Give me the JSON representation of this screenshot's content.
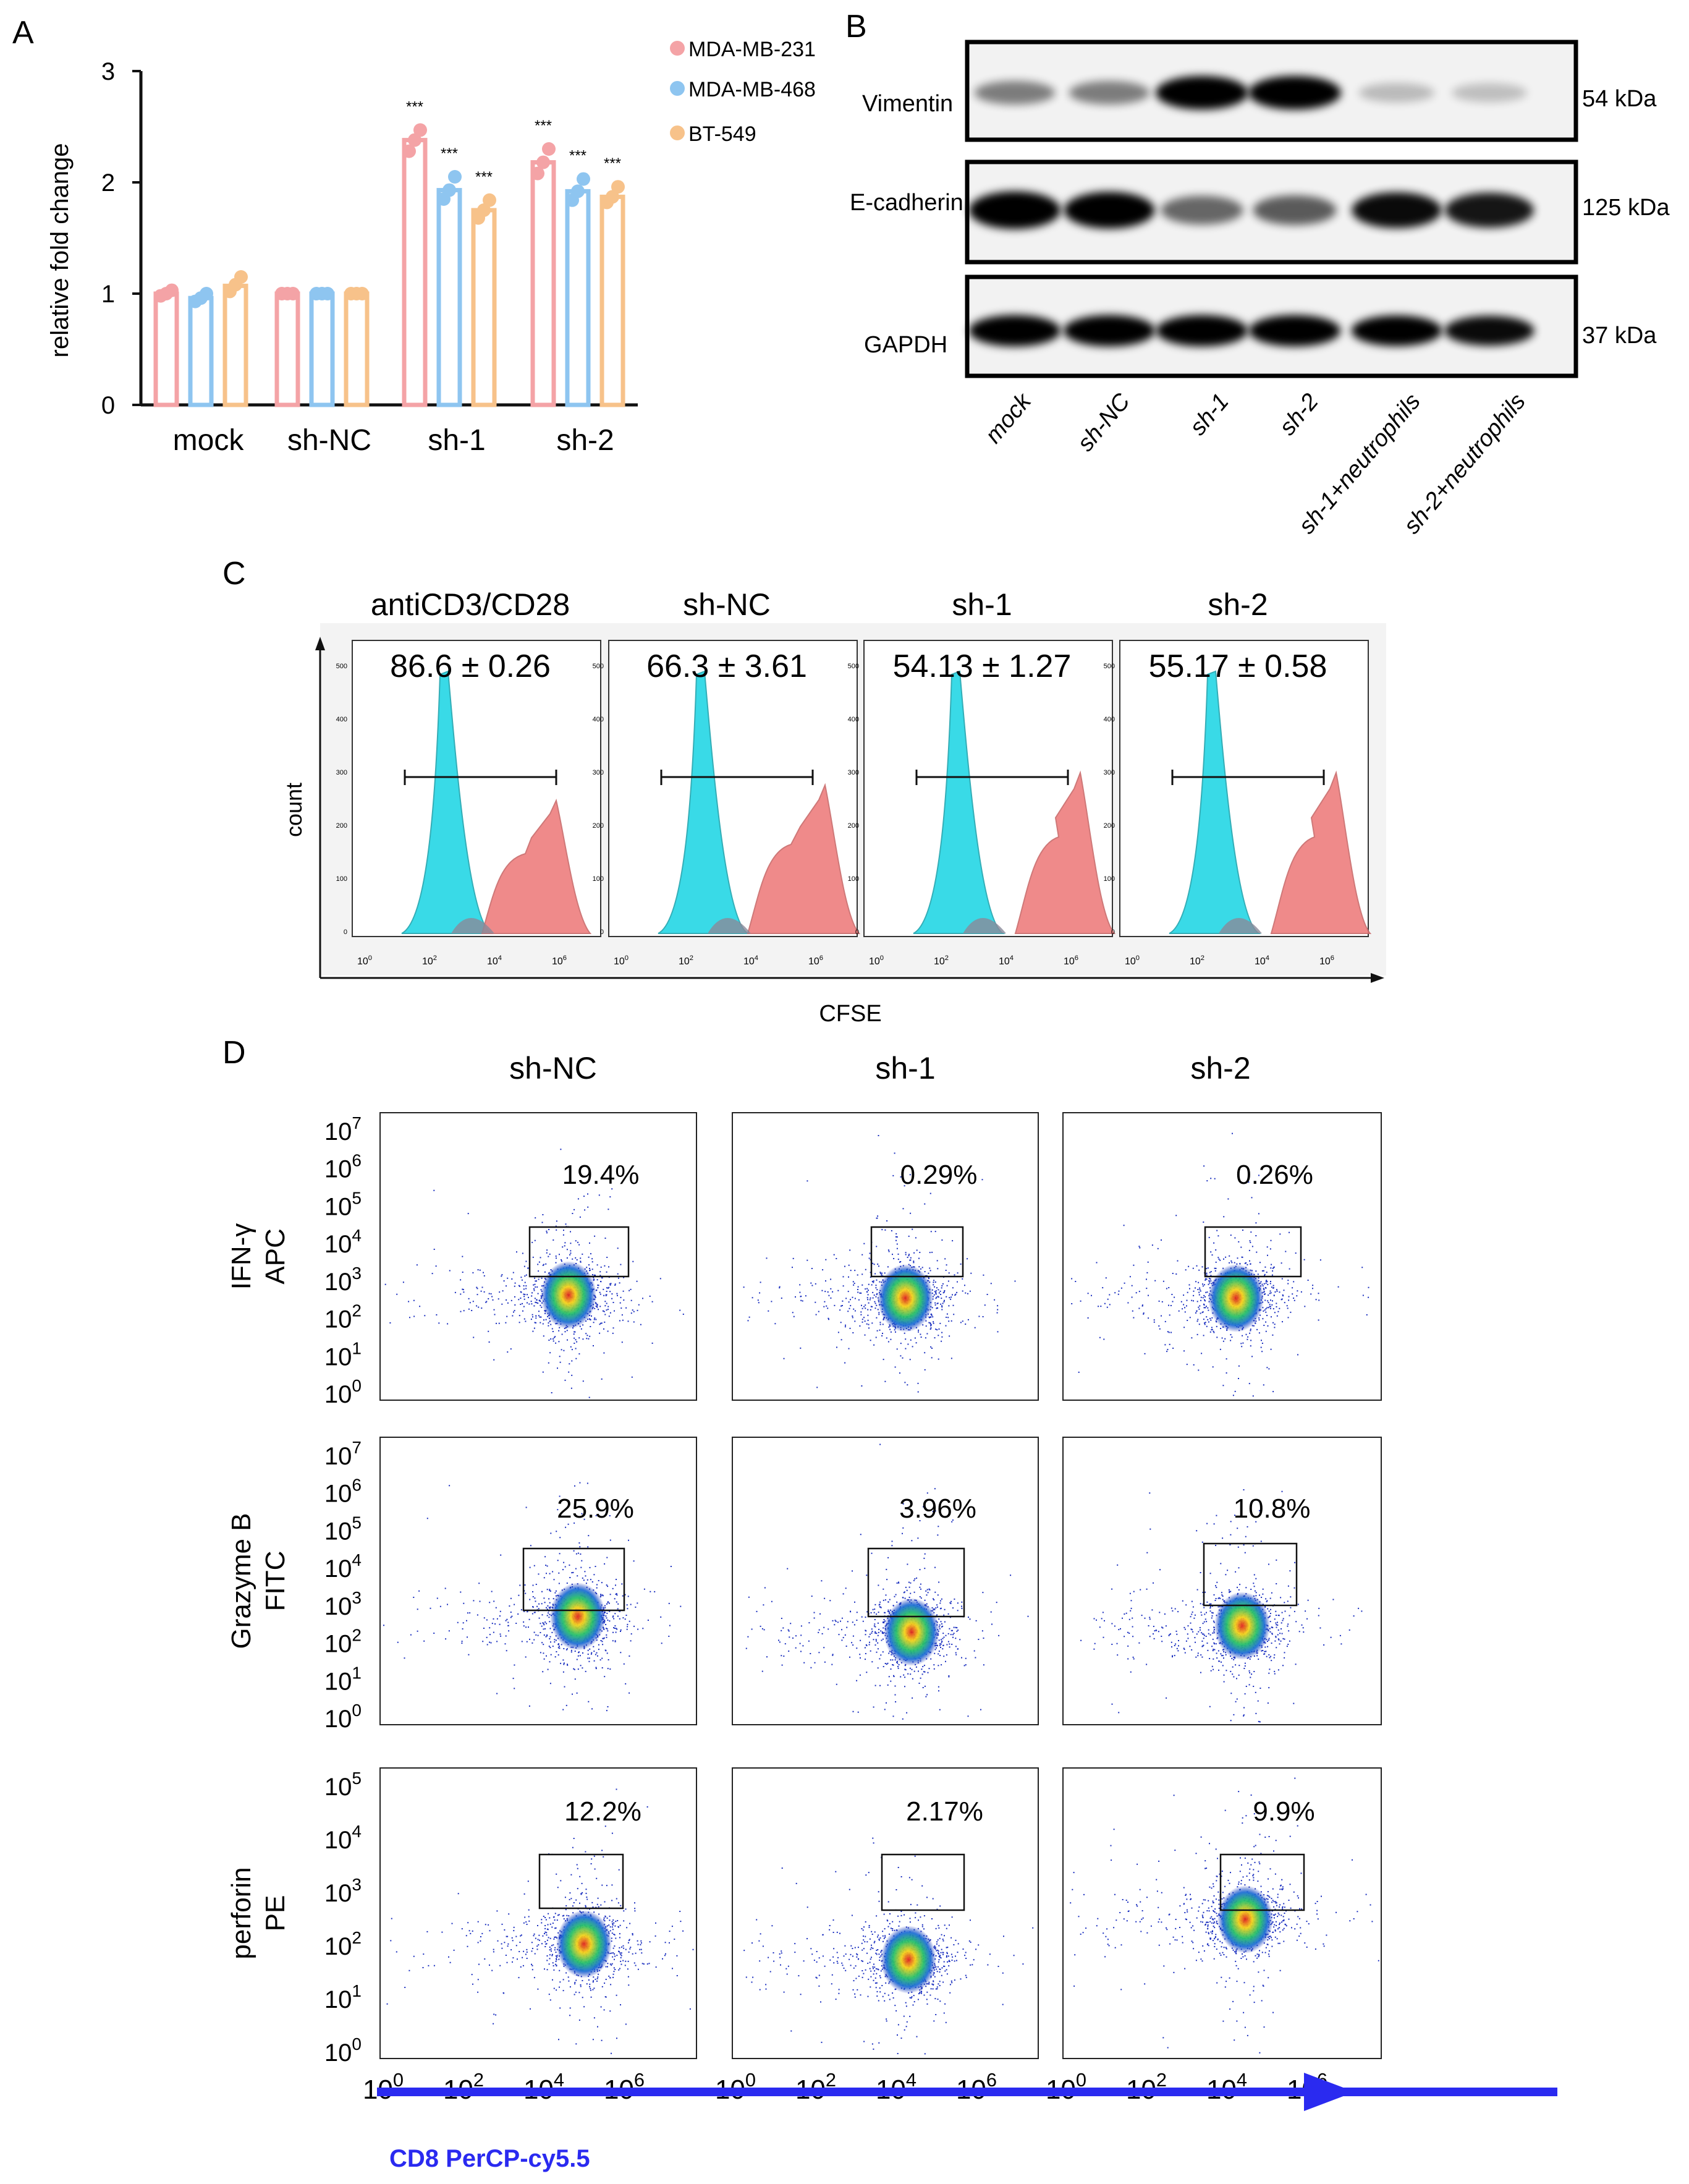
{
  "colors": {
    "mda231": "#F4A3A6",
    "mda468": "#8EC5F0",
    "bt549": "#F7C28A",
    "cyan_hist": "#2FD9E6",
    "red_hist": "#EE7E7E",
    "arrow": "#2A2AF0",
    "arrow_label": "#2A2AF0"
  },
  "panel_letters": [
    "A",
    "B",
    "C",
    "D"
  ],
  "panel_a": {
    "ylabel": "relative fold change",
    "yticks": [
      "0",
      "1",
      "2",
      "3"
    ],
    "legend": [
      "MDA-MB-231",
      "MDA-MB-468",
      "BT-549"
    ],
    "sig_label": "***"
  },
  "chart_data": {
    "type": "bar",
    "title": "",
    "xlabel": "",
    "ylabel": "relative fold change",
    "ylim": [
      0,
      3
    ],
    "categories": [
      "mock",
      "sh-NC",
      "sh-1",
      "sh-2"
    ],
    "series": [
      {
        "name": "MDA-MB-231",
        "values": [
          1.0,
          1.0,
          2.38,
          2.18
        ],
        "points": [
          [
            0.98,
            1.0,
            1.03
          ],
          [
            1.0,
            1.0,
            1.0
          ],
          [
            2.28,
            2.38,
            2.47
          ],
          [
            2.08,
            2.18,
            2.3
          ]
        ],
        "significance": [
          "",
          "",
          "***",
          "***"
        ]
      },
      {
        "name": "MDA-MB-468",
        "values": [
          0.96,
          1.0,
          1.93,
          1.92
        ],
        "points": [
          [
            0.93,
            0.96,
            1.0
          ],
          [
            1.0,
            1.0,
            1.0
          ],
          [
            1.85,
            1.93,
            2.05
          ],
          [
            1.84,
            1.92,
            2.03
          ]
        ],
        "significance": [
          "",
          "",
          "***",
          "***"
        ]
      },
      {
        "name": "BT-549",
        "values": [
          1.07,
          1.0,
          1.75,
          1.87
        ],
        "points": [
          [
            1.02,
            1.08,
            1.15
          ],
          [
            1.0,
            1.0,
            1.0
          ],
          [
            1.68,
            1.75,
            1.84
          ],
          [
            1.82,
            1.87,
            1.96
          ]
        ],
        "significance": [
          "",
          "",
          "***",
          "***"
        ]
      }
    ]
  },
  "panel_b": {
    "proteins": [
      "Vimentin",
      "E-cadherin",
      "GAPDH"
    ],
    "sizes": [
      "54 kDa",
      "125 kDa",
      "37 kDa"
    ],
    "lanes": [
      "mock",
      "sh-NC",
      "sh-1",
      "sh-2",
      "sh-1+neutrophils",
      "sh-2+neutrophils"
    ],
    "band_intensity": [
      [
        0.35,
        0.35,
        1.0,
        1.0,
        0.08,
        0.06
      ],
      [
        0.95,
        0.9,
        0.45,
        0.5,
        0.85,
        0.8
      ],
      [
        0.95,
        0.95,
        0.95,
        0.95,
        0.9,
        0.85
      ]
    ]
  },
  "panel_c": {
    "titles": [
      "antiCD3/CD28",
      "sh-NC",
      "sh-1",
      "sh-2"
    ],
    "values": [
      "86.6 ± 0.26",
      "66.3 ± 3.61",
      "54.13 ± 1.27",
      "55.17 ± 0.58"
    ],
    "ylabel": "count",
    "xlabel": "CFSE",
    "yticks": [
      "0",
      "100",
      "200",
      "300",
      "400",
      "500"
    ],
    "xtick_base": "10",
    "xtick_exps": [
      "0",
      "2",
      "4",
      "6"
    ]
  },
  "panel_d": {
    "cols": [
      "sh-NC",
      "sh-1",
      "sh-2"
    ],
    "rows": [
      {
        "label1": "IFN-γ",
        "label2": "APC",
        "pcts": [
          "19.4%",
          "0.29%",
          "0.26%"
        ],
        "exps": [
          "7",
          "6",
          "5",
          "4",
          "3",
          "2",
          "1",
          "0"
        ]
      },
      {
        "label1": "Grazyme B",
        "label2": "FITC",
        "pcts": [
          "25.9%",
          "3.96%",
          "10.8%"
        ],
        "exps": [
          "7",
          "6",
          "5",
          "4",
          "3",
          "2",
          "1",
          "0"
        ]
      },
      {
        "label1": "perforin",
        "label2": "PE",
        "pcts": [
          "12.2%",
          "2.17%",
          "9.9%"
        ],
        "exps": [
          "5",
          "4",
          "3",
          "2",
          "1",
          "0"
        ]
      }
    ],
    "xtick_base": "10",
    "xtick_exps": [
      "0",
      "2",
      "4",
      "6"
    ],
    "axis_label": "CD8 PerCP-cy5.5"
  }
}
